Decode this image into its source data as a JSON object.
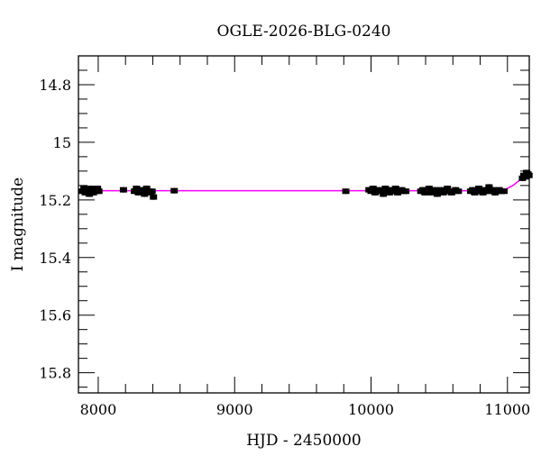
{
  "chart_data": {
    "type": "scatter",
    "title": "OGLE-2026-BLG-0240",
    "xlabel": "HJD - 2450000",
    "ylabel": "I magnitude",
    "xlim": [
      7855,
      11160
    ],
    "ylim": [
      15.87,
      14.7
    ],
    "y_inverted": true,
    "xticks": [
      8000,
      9000,
      10000,
      11000
    ],
    "xtick_labels": [
      "8000",
      "9000",
      "10000",
      "11000"
    ],
    "yticks": [
      14.8,
      15,
      15.2,
      15.4,
      15.6,
      15.8
    ],
    "ytick_labels": [
      "14.8",
      "15",
      "15.2",
      "15.4",
      "15.6",
      "15.8"
    ],
    "x_minor_step": 200,
    "y_minor_step": 0.05,
    "grid": false,
    "colors": {
      "data": "#000000",
      "model": "#ff00ff"
    },
    "error": 0.01,
    "points": [
      [
        7880,
        15.17
      ],
      [
        7895,
        15.16
      ],
      [
        7905,
        15.175
      ],
      [
        7915,
        15.165
      ],
      [
        7925,
        15.17
      ],
      [
        7935,
        15.18
      ],
      [
        7945,
        15.16
      ],
      [
        7955,
        15.17
      ],
      [
        7965,
        15.175
      ],
      [
        7975,
        15.165
      ],
      [
        7985,
        15.17
      ],
      [
        7995,
        15.16
      ],
      [
        8005,
        15.17
      ],
      [
        8185,
        15.165
      ],
      [
        8265,
        15.17
      ],
      [
        8280,
        15.16
      ],
      [
        8295,
        15.175
      ],
      [
        8310,
        15.165
      ],
      [
        8325,
        15.17
      ],
      [
        8340,
        15.18
      ],
      [
        8355,
        15.16
      ],
      [
        8370,
        15.17
      ],
      [
        8385,
        15.175
      ],
      [
        8395,
        15.17
      ],
      [
        8405,
        15.19
      ],
      [
        8557,
        15.168
      ],
      [
        9815,
        15.17
      ],
      [
        9985,
        15.165
      ],
      [
        10000,
        15.17
      ],
      [
        10015,
        15.16
      ],
      [
        10030,
        15.175
      ],
      [
        10045,
        15.17
      ],
      [
        10060,
        15.165
      ],
      [
        10075,
        15.17
      ],
      [
        10090,
        15.18
      ],
      [
        10105,
        15.16
      ],
      [
        10120,
        15.17
      ],
      [
        10135,
        15.175
      ],
      [
        10150,
        15.165
      ],
      [
        10165,
        15.17
      ],
      [
        10180,
        15.16
      ],
      [
        10195,
        15.175
      ],
      [
        10210,
        15.17
      ],
      [
        10225,
        15.165
      ],
      [
        10240,
        15.17
      ],
      [
        10255,
        15.17
      ],
      [
        10365,
        15.17
      ],
      [
        10380,
        15.165
      ],
      [
        10395,
        15.175
      ],
      [
        10410,
        15.17
      ],
      [
        10425,
        15.16
      ],
      [
        10440,
        15.175
      ],
      [
        10455,
        15.17
      ],
      [
        10470,
        15.165
      ],
      [
        10485,
        15.18
      ],
      [
        10500,
        15.17
      ],
      [
        10515,
        15.165
      ],
      [
        10530,
        15.175
      ],
      [
        10545,
        15.17
      ],
      [
        10560,
        15.16
      ],
      [
        10575,
        15.17
      ],
      [
        10590,
        15.175
      ],
      [
        10605,
        15.17
      ],
      [
        10620,
        15.165
      ],
      [
        10640,
        15.17
      ],
      [
        10730,
        15.17
      ],
      [
        10745,
        15.165
      ],
      [
        10760,
        15.175
      ],
      [
        10775,
        15.17
      ],
      [
        10790,
        15.16
      ],
      [
        10805,
        15.17
      ],
      [
        10820,
        15.175
      ],
      [
        10835,
        15.165
      ],
      [
        10850,
        15.17
      ],
      [
        10865,
        15.155
      ],
      [
        10880,
        15.17
      ],
      [
        10895,
        15.165
      ],
      [
        10910,
        15.175
      ],
      [
        10925,
        15.17
      ],
      [
        10940,
        15.165
      ],
      [
        10955,
        15.17
      ],
      [
        10975,
        15.17
      ],
      [
        11110,
        15.125
      ],
      [
        11120,
        15.115
      ],
      [
        11130,
        15.12
      ],
      [
        11140,
        15.105
      ],
      [
        11150,
        15.11
      ],
      [
        11158,
        15.115
      ]
    ],
    "model": {
      "baseline": 15.168,
      "points": [
        [
          7855,
          15.168
        ],
        [
          10900,
          15.168
        ],
        [
          10960,
          15.166
        ],
        [
          11000,
          15.16
        ],
        [
          11040,
          15.15
        ],
        [
          11080,
          15.135
        ],
        [
          11120,
          15.12
        ],
        [
          11160,
          15.108
        ]
      ]
    }
  }
}
